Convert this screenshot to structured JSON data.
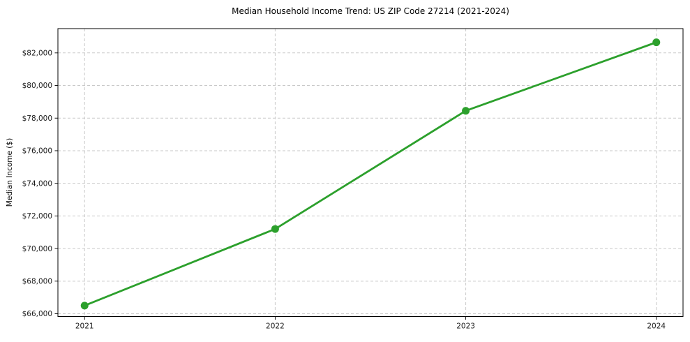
{
  "figure": {
    "background": "#ffffff"
  },
  "chart_data": {
    "type": "line",
    "title": "Median Household Income Trend: US ZIP Code 27214 (2021-2024)",
    "xlabel": "",
    "ylabel": "Median Income ($)",
    "x": [
      2021,
      2022,
      2023,
      2024
    ],
    "x_tick_labels": [
      "2021",
      "2022",
      "2023",
      "2024"
    ],
    "series": [
      {
        "name": "Median Household Income",
        "values": [
          66500,
          71200,
          78450,
          82650
        ],
        "color": "#2ca02c",
        "marker": "circle",
        "line_width": 2.8,
        "marker_radius": 5.5
      }
    ],
    "y_ticks": [
      66000,
      68000,
      70000,
      72000,
      74000,
      76000,
      78000,
      80000,
      82000
    ],
    "y_tick_labels": [
      "$66,000",
      "$68,000",
      "$70,000",
      "$72,000",
      "$74,000",
      "$76,000",
      "$78,000",
      "$80,000",
      "$82,000"
    ],
    "xlim": [
      2020.86,
      2024.14
    ],
    "ylim": [
      65830,
      83490
    ],
    "grid": {
      "show": true,
      "style": "dashed",
      "color": "#c9c9c9"
    },
    "spine_color": "#000000",
    "legend": "none"
  }
}
